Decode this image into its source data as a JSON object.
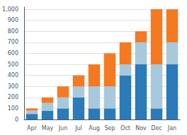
{
  "chart_data": {
    "type": "bar",
    "stacked": true,
    "grid": true,
    "categories": [
      "Apr",
      "May",
      "Jun",
      "Jul",
      "Aug",
      "Sep",
      "Oct",
      "Nov",
      "Dec",
      "Jan"
    ],
    "series": [
      {
        "color": "#2B7BB9",
        "values": [
          50,
          80,
          100,
          200,
          100,
          100,
          400,
          500,
          100,
          500
        ]
      },
      {
        "color": "#A8C8DC",
        "values": [
          30,
          70,
          100,
          100,
          200,
          200,
          100,
          200,
          400,
          200
        ]
      },
      {
        "color": "#F47920",
        "values": [
          20,
          50,
          100,
          100,
          200,
          300,
          200,
          100,
          500,
          300
        ]
      }
    ],
    "ylim": [
      0,
      1020
    ],
    "yticks": [
      0,
      100,
      200,
      300,
      400,
      500,
      600,
      700,
      800,
      900,
      1000
    ]
  }
}
